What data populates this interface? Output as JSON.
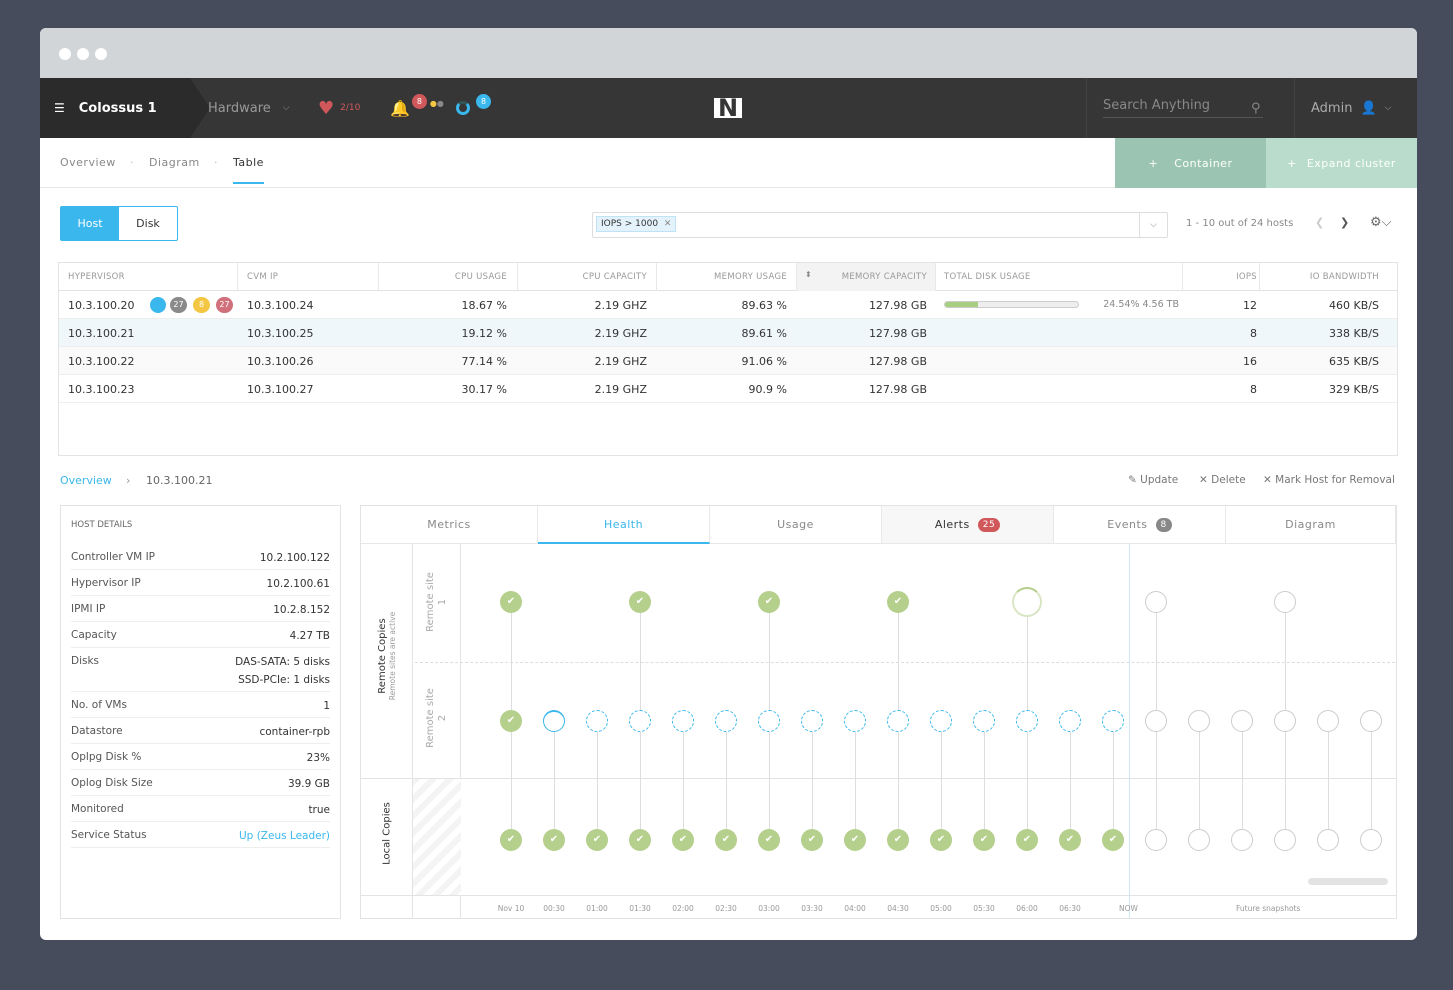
{
  "header": {
    "cluster": "Colossus 1",
    "menu": "Hardware",
    "health": "2/10",
    "alerts_count": "8",
    "tasks_count": "8",
    "search_placeholder": "Search Anything",
    "user": "Admin",
    "logo": "N"
  },
  "subnav": {
    "tabs": [
      "Overview",
      "Diagram",
      "Table"
    ],
    "active": "Table",
    "container_btn": "Container",
    "expand_btn": "Expand cluster"
  },
  "toggle": {
    "options": [
      "Host",
      "Disk"
    ],
    "active": "Host"
  },
  "filter": {
    "chip": "IOPS > 1000"
  },
  "pagination": {
    "text": "1 - 10 out of 24 hosts"
  },
  "table": {
    "headers": [
      "HYPERVISOR",
      "CVM IP",
      "CPU USAGE",
      "CPU CAPACITY",
      "MEMORY USAGE",
      "MEMORY CAPACITY",
      "TOTAL DISK USAGE",
      "IOPS",
      "IO BANDWIDTH"
    ],
    "first_row_badges": [
      "27",
      "8",
      "27"
    ],
    "rows": [
      {
        "hypervisor": "10.3.100.20",
        "cvm": "10.3.100.24",
        "cpu": "18.67 %",
        "cpucap": "2.19 GHZ",
        "mem": "89.63 %",
        "memcap": "127.98 GB",
        "disk": "24.54% 4.56 TB",
        "disk_pct": 24.54,
        "iops": "12",
        "bw": "460 KB/S"
      },
      {
        "hypervisor": "10.3.100.21",
        "cvm": "10.3.100.25",
        "cpu": "19.12 %",
        "cpucap": "2.19 GHZ",
        "mem": "89.61 %",
        "memcap": "127.98 GB",
        "disk": "",
        "iops": "8",
        "bw": "338 KB/S"
      },
      {
        "hypervisor": "10.3.100.22",
        "cvm": "10.3.100.26",
        "cpu": "77.14 %",
        "cpucap": "2.19 GHZ",
        "mem": "91.06 %",
        "memcap": "127.98 GB",
        "disk": "",
        "iops": "16",
        "bw": "635 KB/S"
      },
      {
        "hypervisor": "10.3.100.23",
        "cvm": "10.3.100.27",
        "cpu": "30.17 %",
        "cpucap": "2.19 GHZ",
        "mem": "90.9 %",
        "memcap": "127.98 GB",
        "disk": "",
        "iops": "8",
        "bw": "329 KB/S"
      }
    ]
  },
  "breadcrumb": {
    "root": "Overview",
    "current": "10.3.100.21"
  },
  "actions": {
    "update": "Update",
    "delete": "Delete",
    "remove": "Mark Host for Removal"
  },
  "host_details": {
    "title": "HOST DETAILS",
    "rows": [
      [
        "Controller VM IP",
        "10.2.100.122"
      ],
      [
        "Hypervisor IP",
        "10.2.100.61"
      ],
      [
        "IPMI IP",
        "10.2.8.152"
      ],
      [
        "Capacity",
        "4.27 TB"
      ],
      [
        "Disks",
        "DAS-SATA: 5 disks\nSSD-PCIe: 1 disks"
      ],
      [
        "No. of VMs",
        "1"
      ],
      [
        "Datastore",
        "container-rpb"
      ],
      [
        "Oplpg Disk %",
        "23%"
      ],
      [
        "Oplog Disk Size",
        "39.9 GB"
      ],
      [
        "Monitored",
        "true"
      ],
      [
        "Service Status",
        "Up (Zeus Leader)"
      ]
    ]
  },
  "panel_tabs": [
    {
      "label": "Metrics"
    },
    {
      "label": "Health"
    },
    {
      "label": "Usage"
    },
    {
      "label": "Alerts",
      "badge": "25"
    },
    {
      "label": "Events",
      "badge": "8"
    },
    {
      "label": "Diagram"
    }
  ],
  "panel_active": "Health",
  "timeline": {
    "remote_label": "Remote Copies",
    "remote_sub": "Remote sites are active",
    "local_label": "Local Copies",
    "site1": "Remote site 1",
    "site2": "Remote site 2",
    "ticks": [
      "Nov 10",
      "00:30",
      "01:00",
      "01:30",
      "02:00",
      "02:30",
      "03:00",
      "03:30",
      "04:00",
      "04:30",
      "05:00",
      "05:30",
      "06:00",
      "06:30"
    ],
    "now": "NOW",
    "future": "Future snapshots",
    "site1_states": [
      "done",
      "",
      "",
      "done",
      "",
      "",
      "done",
      "",
      "",
      "done",
      "",
      "",
      "progress",
      "",
      "",
      "future",
      "",
      "",
      "future",
      "",
      ""
    ],
    "site2_states": [
      "done",
      "progress",
      "pending",
      "pending",
      "pending",
      "pending",
      "pending",
      "pending",
      "pending",
      "pending",
      "pending",
      "pending",
      "pending",
      "pending",
      "pending",
      "future",
      "future",
      "future",
      "future",
      "future",
      "future"
    ],
    "local_states": [
      "done",
      "done",
      "done",
      "done",
      "done",
      "done",
      "done",
      "done",
      "done",
      "done",
      "done",
      "done",
      "done",
      "done",
      "done",
      "future",
      "future",
      "future",
      "future",
      "future",
      "future"
    ]
  },
  "colors": {
    "accent": "#3ab7ec",
    "green": "#b5cf8c",
    "teal": "#9bc5b2",
    "teal_light": "#b9dccd",
    "red": "#d0585b"
  }
}
